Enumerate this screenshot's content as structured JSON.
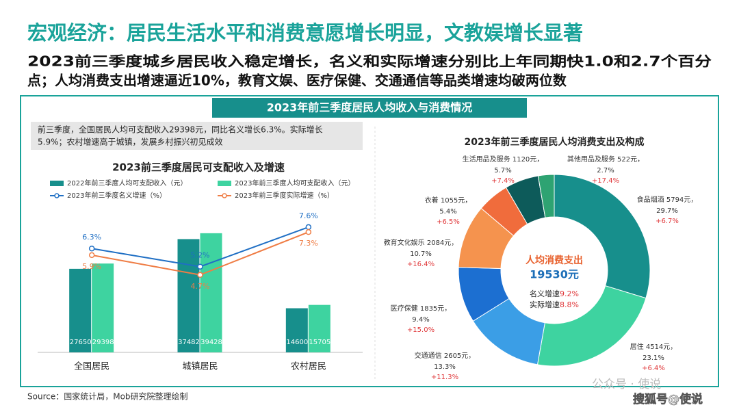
{
  "header": {
    "title": "宏观经济：居民生活水平和消费意愿增长明显，文教娱增长显著",
    "subtitle": [
      "2023前三季度城乡居民收入稳定增长，名义和实际增速分别比上年同期快1.0和2.7个百分",
      "点；人均消费支出增速逼近10%，教育文娱、医疗保健、交通通信等品类增速均破两位数"
    ]
  },
  "panel_title": "2023年前三季度居民人均收入与消费情况",
  "note": [
    "前三季度，全国居民人均可支配收入29398元，同比名义增长6.3%。实际增长",
    "5.9%；农村增速高于城镇，发展乡村振兴初见成效"
  ],
  "chart_data": [
    {
      "type": "bar",
      "title": "2023前三季度居民可支配收入及增速",
      "categories": [
        "全国居民",
        "城镇居民",
        "农村居民"
      ],
      "series": [
        {
          "name": "2022年前三季度人均可支配收入（元）",
          "type": "bar",
          "color": "#178f8c",
          "values": [
            27650,
            37482,
            14600
          ]
        },
        {
          "name": "2023年前三季度人均可支配收入（元）",
          "type": "bar",
          "color": "#3ed3a0",
          "values": [
            29398,
            39428,
            15705
          ]
        },
        {
          "name": "2023年前三季度名义增速（%）",
          "type": "line",
          "axis": "y2",
          "color": "#1f6fc4",
          "values": [
            6.3,
            5.2,
            7.6
          ],
          "value_labels": [
            "6.3%",
            "5.2%",
            "7.6%"
          ]
        },
        {
          "name": "2023年前三季度实际增速（%）",
          "type": "line",
          "axis": "y2",
          "color": "#ef7d45",
          "values": [
            5.9,
            4.7,
            7.3
          ],
          "value_labels": [
            "5.9%",
            "4.7%",
            "7.3%"
          ]
        }
      ],
      "ylim": [
        0,
        60000
      ],
      "y2lim": [
        0,
        11
      ]
    },
    {
      "type": "pie",
      "title": "2023年前三季度居民人均消费支出及构成",
      "categories": [
        "食品烟酒 5794元，",
        "居住 4514元，",
        "交通通信 2605元，",
        "医疗保健 1835元，",
        "教育文化娱乐 2084元，",
        "衣着 1055元，",
        "生活用品及服务 1120元，",
        "其他用品及服务 522元，"
      ],
      "values": [
        29.7,
        23.1,
        13.3,
        9.4,
        10.7,
        5.4,
        5.7,
        2.7
      ],
      "value_labels": [
        "29.7%",
        "23.1%",
        "13.3%",
        "9.4%",
        "10.7%",
        "5.4%",
        "5.7%",
        "2.7%"
      ],
      "growth_labels": [
        "+6.7%",
        "+6.4%",
        "+11.3%",
        "+15.0%",
        "+16.4%",
        "+6.5%",
        "+7.4%",
        "+17.4%"
      ],
      "colors": [
        "#178f8c",
        "#3ed3a0",
        "#3b9ee6",
        "#1c6fd1",
        "#f5934e",
        "#f06c3c",
        "#0d5b5a",
        "#2ea372"
      ],
      "center": {
        "title": "人均消费支出",
        "total_label": "19530元",
        "nominal_label": "名义增速",
        "nominal_value_label": "9.2%",
        "real_label": "实际增速",
        "real_value_label": "8.8%"
      }
    }
  ],
  "source": "Source：国家统计局，Mob研究院整理绘制",
  "watermarks": [
    "公众号 · 使说",
    "搜狐号@使说"
  ]
}
